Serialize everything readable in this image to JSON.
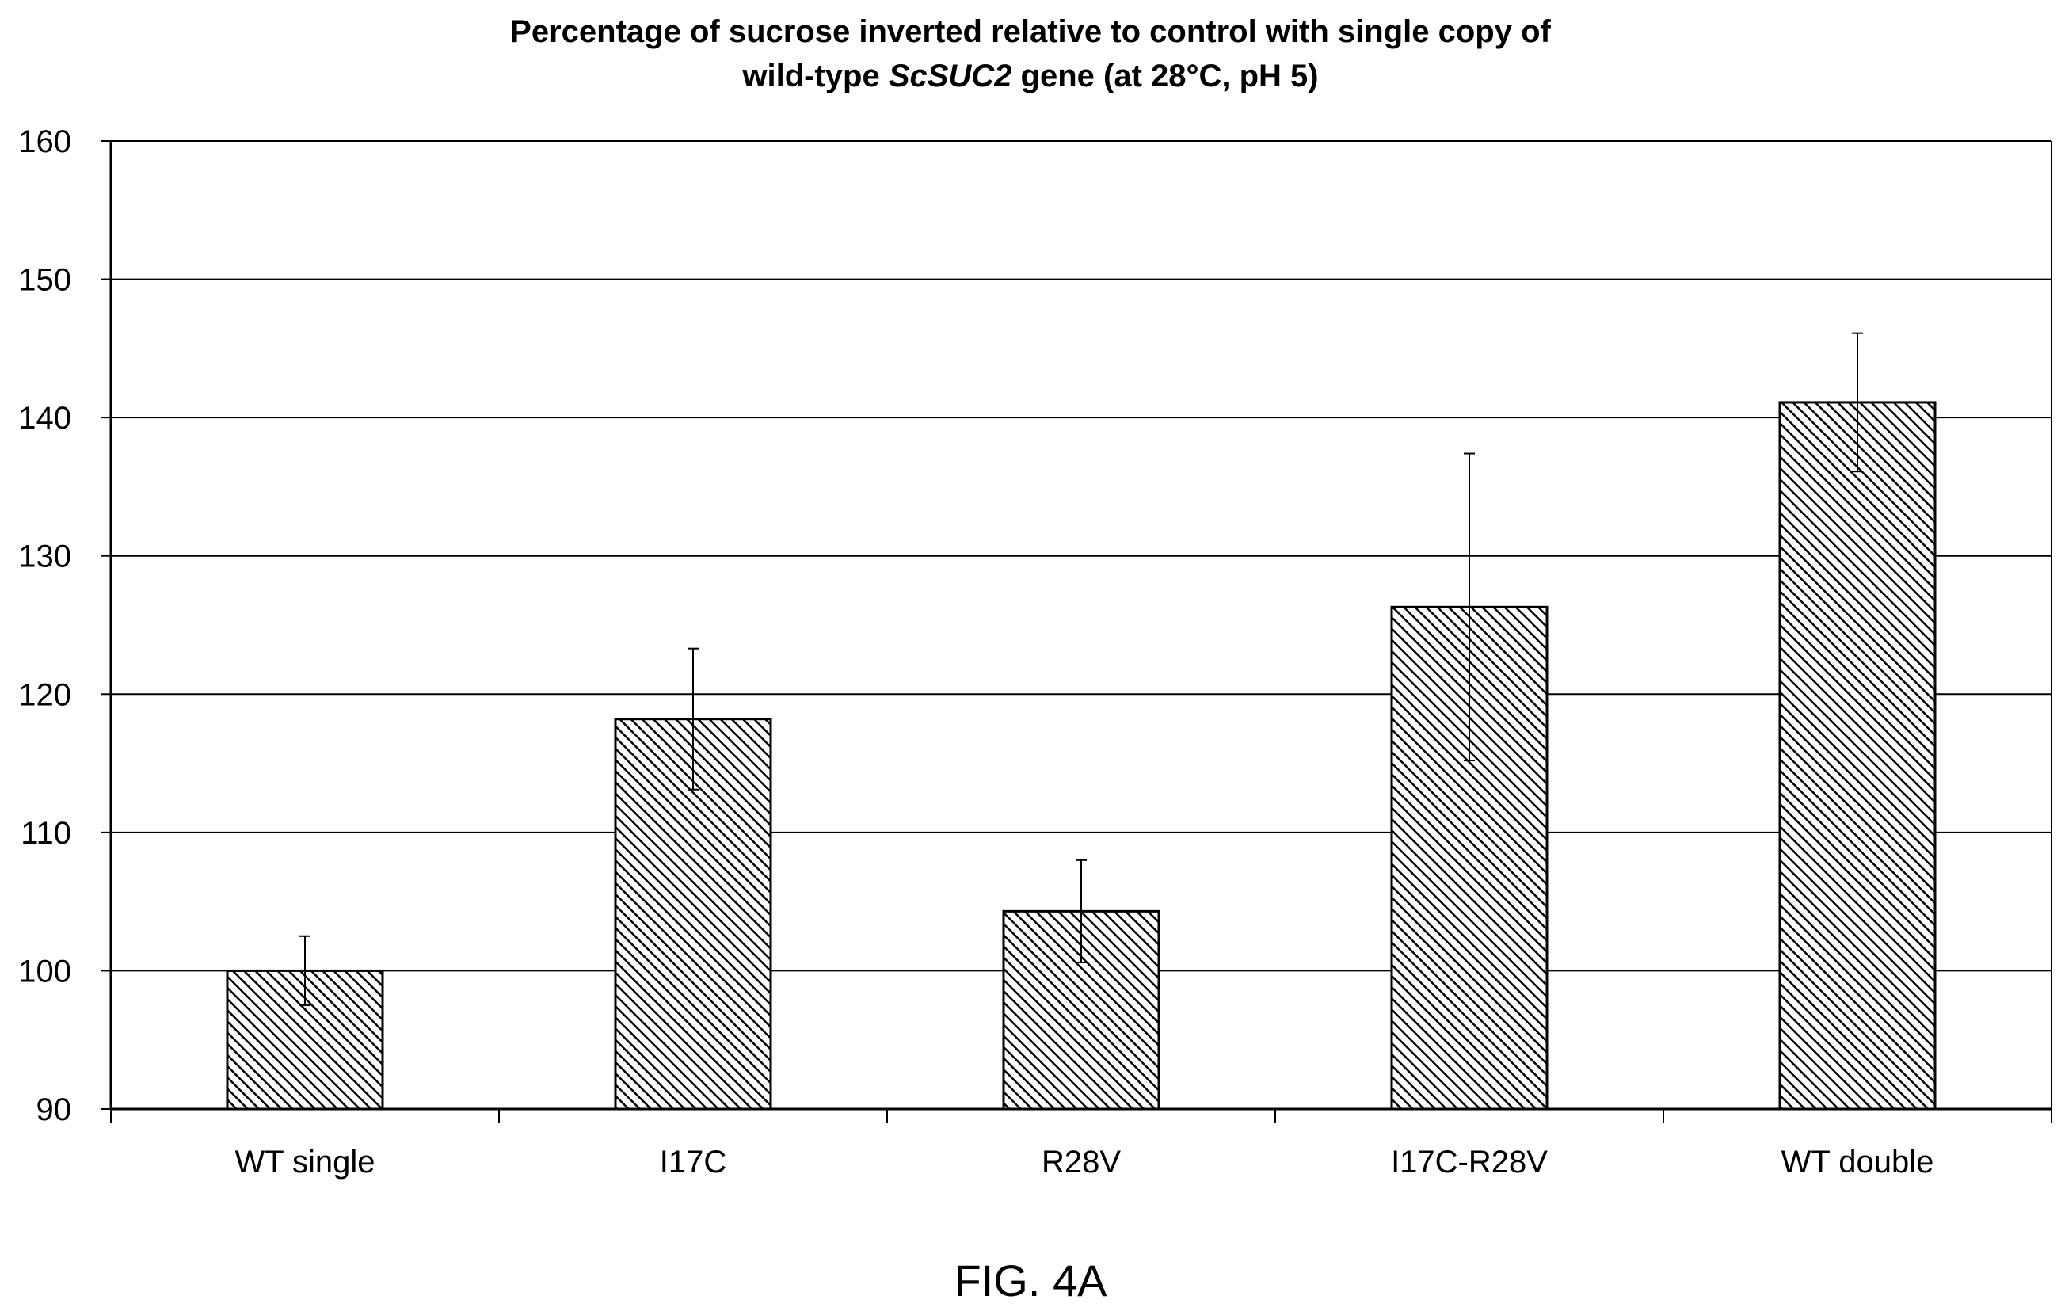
{
  "title": {
    "line1": "Percentage of sucrose inverted relative to control with single copy of",
    "line2_pre": "wild-type ",
    "line2_italic": "ScSUC2",
    "line2_post": " gene (at 28°C, pH 5)"
  },
  "caption": "FIG. 4A",
  "chart_data": {
    "type": "bar",
    "title": "Percentage of sucrose inverted relative to control with single copy of wild-type ScSUC2 gene (at 28°C, pH 5)",
    "xlabel": "",
    "ylabel": "",
    "categories": [
      "WT single",
      "I17C",
      "R28V",
      "I17C-R28V",
      "WT double"
    ],
    "values": [
      100,
      118.2,
      104.3,
      126.3,
      141.1
    ],
    "error_low": [
      97.5,
      113.1,
      100.6,
      115.2,
      136.1
    ],
    "error_high": [
      102.5,
      123.3,
      108.0,
      137.4,
      146.1
    ],
    "ylim": [
      90,
      160
    ],
    "yticks": [
      90,
      100,
      110,
      120,
      130,
      140,
      150,
      160
    ],
    "grid": true,
    "bar_fill": "diagonal-hatch",
    "colors": {
      "bar_stroke": "#000000",
      "hatch": "#000000",
      "grid": "#000000",
      "background": "#ffffff"
    }
  }
}
